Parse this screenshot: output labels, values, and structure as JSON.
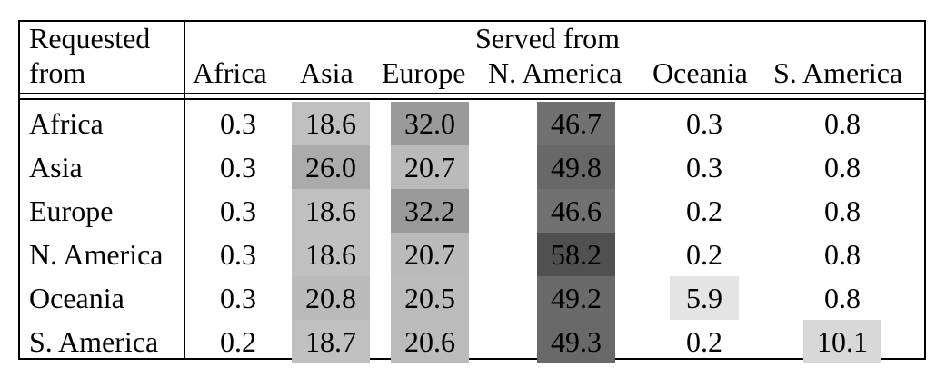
{
  "chart_data": {
    "type": "table",
    "title": "",
    "row_header_label": "Requested\nfrom",
    "row_header_lines": [
      "Requested",
      "from"
    ],
    "column_group_label": "Served from",
    "columns": [
      "Africa",
      "Asia",
      "Europe",
      "N. America",
      "Oceania",
      "S. America"
    ],
    "rows": [
      "Africa",
      "Asia",
      "Europe",
      "N. America",
      "Oceania",
      "S. America"
    ],
    "values": [
      [
        "0.3",
        "18.6",
        "32.0",
        "46.7",
        "0.3",
        "0.8"
      ],
      [
        "0.3",
        "26.0",
        "20.7",
        "49.8",
        "0.3",
        "0.8"
      ],
      [
        "0.3",
        "18.6",
        "32.2",
        "46.6",
        "0.2",
        "0.8"
      ],
      [
        "0.3",
        "18.6",
        "20.7",
        "58.2",
        "0.2",
        "0.8"
      ],
      [
        "0.3",
        "20.8",
        "20.5",
        "49.2",
        "5.9",
        "0.8"
      ],
      [
        "0.2",
        "18.7",
        "20.6",
        "49.3",
        "0.2",
        "10.1"
      ]
    ],
    "cell_shading": "grayscale, darker for larger values (heatmap style); values below ~5 unshaded"
  }
}
